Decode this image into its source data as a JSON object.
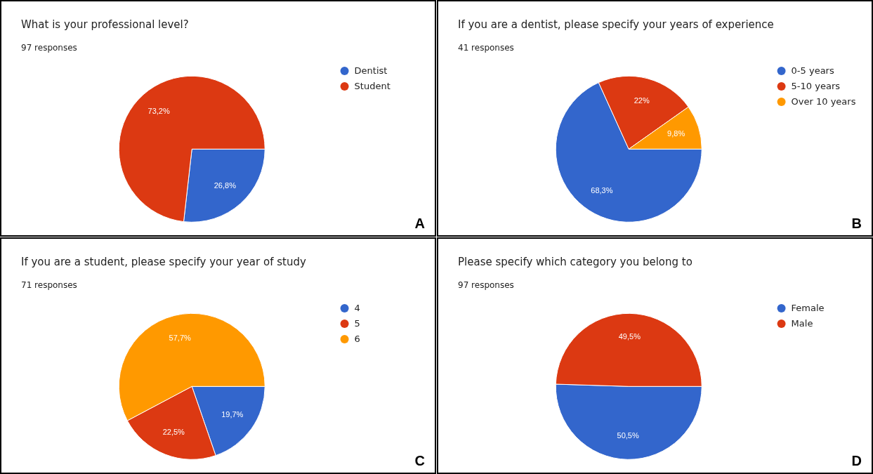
{
  "chart_data": [
    {
      "type": "pie",
      "title": "What is your professional level?",
      "subtitle": "97 responses",
      "categories": [
        "Dentist",
        "Student"
      ],
      "values": [
        26.8,
        73.2
      ],
      "colors": [
        "#3366cc",
        "#dc3912"
      ],
      "value_labels": [
        "26,8%",
        "73,2%"
      ],
      "legend": "top right",
      "annotations": [
        "A"
      ]
    },
    {
      "type": "pie",
      "title": "If you are a dentist, please specify your years of experience",
      "subtitle": "41 responses",
      "categories": [
        "0-5 years",
        "5-10 years",
        "Over 10 years"
      ],
      "values": [
        68.3,
        22,
        9.8
      ],
      "colors": [
        "#3366cc",
        "#dc3912",
        "#ff9900"
      ],
      "value_labels": [
        "68,3%",
        "22%",
        "9,8%"
      ],
      "legend": "top right",
      "annotations": [
        "B"
      ]
    },
    {
      "type": "pie",
      "title": "If you are a student, please specify your year of study",
      "subtitle": "71 responses",
      "categories": [
        "4",
        "5",
        "6"
      ],
      "values": [
        19.7,
        22.5,
        57.7
      ],
      "colors": [
        "#3366cc",
        "#dc3912",
        "#ff9900"
      ],
      "value_labels": [
        "19,7%",
        "22,5%",
        "57,7%"
      ],
      "legend": "top right",
      "annotations": [
        "C"
      ]
    },
    {
      "type": "pie",
      "title": "Please specify which category you belong to",
      "subtitle": "97 responses",
      "categories": [
        "Female",
        "Male"
      ],
      "values": [
        50.5,
        49.5
      ],
      "colors": [
        "#3366cc",
        "#dc3912"
      ],
      "value_labels": [
        "50,5%",
        "49,5%"
      ],
      "legend": "top right",
      "annotations": [
        "D"
      ]
    }
  ]
}
